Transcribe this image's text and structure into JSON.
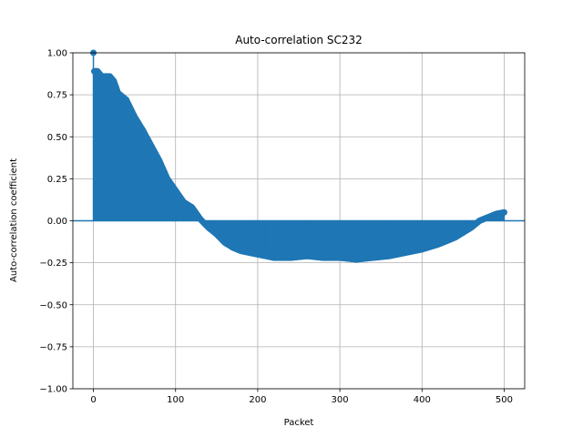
{
  "chart_data": {
    "type": "stem",
    "title": "Auto-correlation SC232",
    "xlabel": "Packet",
    "ylabel": "Auto-correlation coefficient",
    "xlim": [
      -25,
      525
    ],
    "ylim": [
      -1.0,
      1.0
    ],
    "grid": true,
    "color": "#1f77b4",
    "x_ticks": [
      0,
      100,
      200,
      300,
      400,
      500
    ],
    "x_tick_labels": [
      "0",
      "100",
      "200",
      "300",
      "400",
      "500"
    ],
    "y_ticks": [
      1.0,
      0.75,
      0.5,
      0.25,
      0.0,
      -0.25,
      -0.5,
      -0.75,
      -1.0
    ],
    "y_tick_labels": [
      "1.00",
      "0.75",
      "0.50",
      "0.25",
      "0.00",
      "−0.25",
      "−0.50",
      "−0.75",
      "−1.00"
    ],
    "lags_range": [
      0,
      500
    ],
    "key_points": [
      [
        0,
        1.0
      ],
      [
        1,
        0.89
      ],
      [
        5,
        0.89
      ],
      [
        10,
        0.86
      ],
      [
        20,
        0.86
      ],
      [
        25,
        0.83
      ],
      [
        30,
        0.76
      ],
      [
        40,
        0.72
      ],
      [
        50,
        0.62
      ],
      [
        60,
        0.54
      ],
      [
        70,
        0.45
      ],
      [
        80,
        0.36
      ],
      [
        90,
        0.25
      ],
      [
        100,
        0.18
      ],
      [
        110,
        0.11
      ],
      [
        120,
        0.08
      ],
      [
        130,
        0.01
      ],
      [
        140,
        -0.04
      ],
      [
        150,
        -0.08
      ],
      [
        160,
        -0.13
      ],
      [
        170,
        -0.16
      ],
      [
        180,
        -0.18
      ],
      [
        190,
        -0.19
      ],
      [
        200,
        -0.2
      ],
      [
        210,
        -0.21
      ],
      [
        220,
        -0.22
      ],
      [
        240,
        -0.22
      ],
      [
        260,
        -0.21
      ],
      [
        280,
        -0.22
      ],
      [
        300,
        -0.22
      ],
      [
        320,
        -0.23
      ],
      [
        340,
        -0.22
      ],
      [
        360,
        -0.21
      ],
      [
        380,
        -0.19
      ],
      [
        400,
        -0.17
      ],
      [
        420,
        -0.14
      ],
      [
        440,
        -0.1
      ],
      [
        460,
        -0.04
      ],
      [
        470,
        0.0
      ],
      [
        480,
        0.02
      ],
      [
        490,
        0.04
      ],
      [
        500,
        0.05
      ]
    ]
  }
}
